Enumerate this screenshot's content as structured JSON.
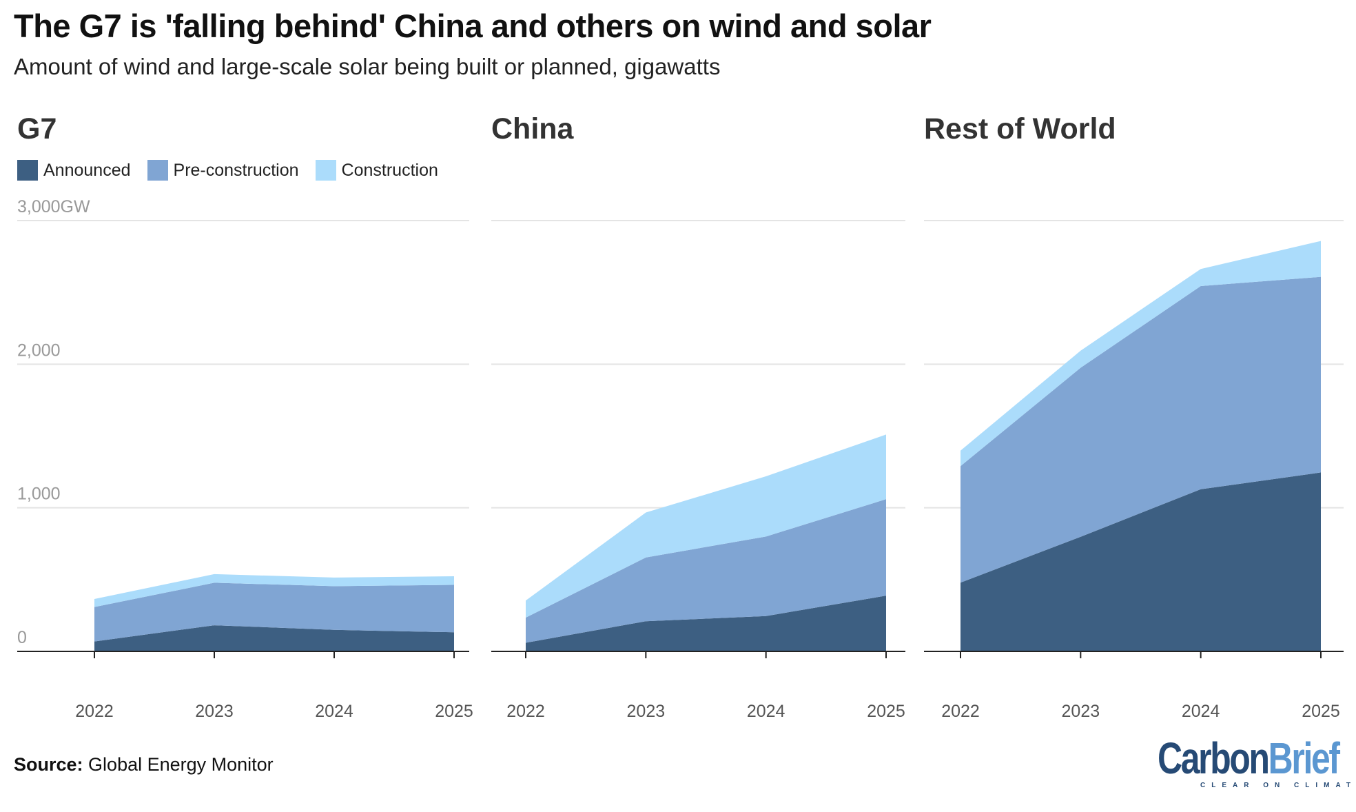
{
  "title": "The G7 is 'falling behind' China and others on wind and solar",
  "subtitle": "Amount of wind and large-scale solar being built or planned, gigawatts",
  "source_label": "Source:",
  "source_text": "Global Energy Monitor",
  "logo": {
    "word1": "Carbon",
    "word2": "Brief",
    "tagline": "CLEAR ON CLIMATE",
    "color1": "#264a75",
    "color2": "#5b97d1"
  },
  "legend": [
    {
      "label": "Announced",
      "color": "#3d5f82"
    },
    {
      "label": "Pre-construction",
      "color": "#80a5d3"
    },
    {
      "label": "Construction",
      "color": "#abdcfb"
    }
  ],
  "chart_data": [
    {
      "type": "area",
      "stacked": true,
      "title": "G7",
      "categories": [
        "2022",
        "2023",
        "2024",
        "2025"
      ],
      "series": [
        {
          "name": "Announced",
          "values": [
            69,
            182,
            150,
            133
          ]
        },
        {
          "name": "Pre-construction",
          "values": [
            240,
            296,
            304,
            330
          ]
        },
        {
          "name": "Construction",
          "values": [
            56,
            60,
            60,
            60
          ]
        }
      ],
      "ylim": [
        0,
        3000
      ],
      "yticks": [
        "0",
        "1,000",
        "2,000",
        "3,000GW"
      ],
      "grid": true,
      "legend": "top-left"
    },
    {
      "type": "area",
      "stacked": true,
      "title": "China",
      "categories": [
        "2022",
        "2023",
        "2024",
        "2025"
      ],
      "series": [
        {
          "name": "Announced",
          "values": [
            60,
            210,
            246,
            388
          ]
        },
        {
          "name": "Pre-construction",
          "values": [
            175,
            444,
            554,
            672
          ]
        },
        {
          "name": "Construction",
          "values": [
            119,
            313,
            419,
            450
          ]
        }
      ],
      "ylim": [
        0,
        3000
      ],
      "grid": true
    },
    {
      "type": "area",
      "stacked": true,
      "title": "Rest of World",
      "categories": [
        "2022",
        "2023",
        "2024",
        "2025"
      ],
      "series": [
        {
          "name": "Announced",
          "values": [
            479,
            798,
            1129,
            1246
          ]
        },
        {
          "name": "Pre-construction",
          "values": [
            811,
            1177,
            1415,
            1362
          ]
        },
        {
          "name": "Construction",
          "values": [
            108,
            119,
            119,
            250
          ]
        }
      ],
      "ylim": [
        0,
        3000
      ],
      "grid": true
    }
  ]
}
